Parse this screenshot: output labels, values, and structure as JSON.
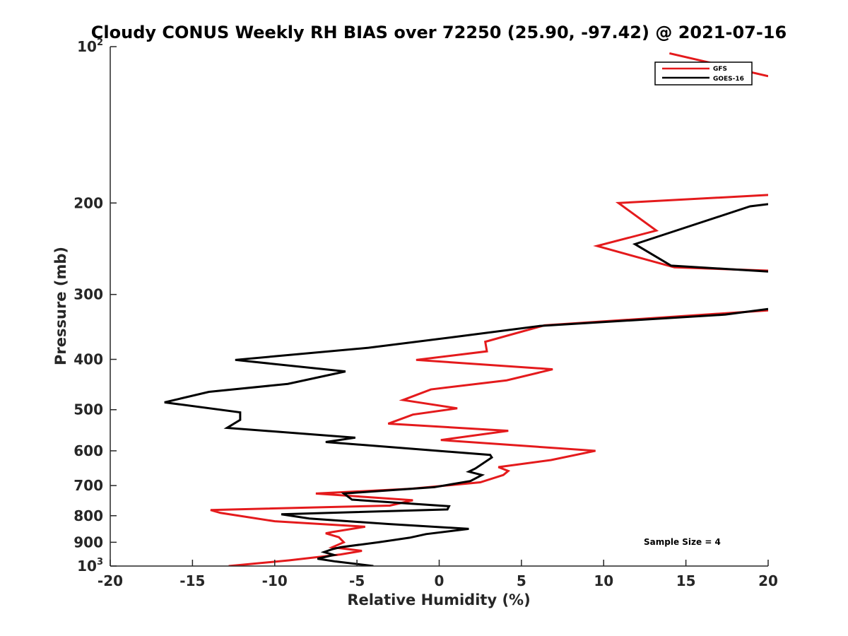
{
  "chart_data": {
    "type": "line",
    "title": "Cloudy CONUS Weekly RH BIAS over 72250 (25.90, -97.42) @ 2021-07-16",
    "xlabel": "Relative Humidity (%)",
    "ylabel": "Pressure (mb)",
    "xlim": [
      -20,
      20
    ],
    "ylim": [
      100,
      1000
    ],
    "y_scale": "log",
    "y_reversed": true,
    "grid": false,
    "legend_position": "top-right",
    "annotation": "Sample Size = 4",
    "x_ticks": [
      -20,
      -15,
      -10,
      -5,
      0,
      5,
      10,
      15,
      20
    ],
    "x_tick_labels": [
      "-20",
      "-15",
      "-10",
      "-5",
      "0",
      "5",
      "10",
      "15",
      "20"
    ],
    "y_ticks": [
      {
        "value": 100,
        "base": "10",
        "exp": "2"
      },
      {
        "value": 200,
        "label": "200"
      },
      {
        "value": 300,
        "label": "300"
      },
      {
        "value": 400,
        "label": "400"
      },
      {
        "value": 500,
        "label": "500"
      },
      {
        "value": 600,
        "label": "600"
      },
      {
        "value": 700,
        "label": "700"
      },
      {
        "value": 800,
        "label": "800"
      },
      {
        "value": 900,
        "label": "900"
      },
      {
        "value": 1000,
        "base": "10",
        "exp": "3"
      }
    ],
    "series": [
      {
        "name": "GFS",
        "color": "#e41a1c",
        "points": [
          [
            -12.8,
            1000
          ],
          [
            -9.1,
            975
          ],
          [
            -6.0,
            950
          ],
          [
            -4.7,
            935
          ],
          [
            -6.5,
            920
          ],
          [
            -5.8,
            900
          ],
          [
            -6.1,
            880
          ],
          [
            -6.9,
            865
          ],
          [
            -6.5,
            860
          ],
          [
            -4.5,
            840
          ],
          [
            -10.0,
            820
          ],
          [
            -13.3,
            790
          ],
          [
            -13.9,
            780
          ],
          [
            -3.0,
            765
          ],
          [
            -1.6,
            747
          ],
          [
            -7.5,
            725
          ],
          [
            -1.7,
            710
          ],
          [
            2.5,
            690
          ],
          [
            3.9,
            668
          ],
          [
            4.2,
            656
          ],
          [
            3.6,
            645
          ],
          [
            6.8,
            625
          ],
          [
            9.5,
            600
          ],
          [
            0.1,
            572
          ],
          [
            4.2,
            549
          ],
          [
            -3.1,
            532
          ],
          [
            -1.6,
            511
          ],
          [
            1.1,
            497
          ],
          [
            -2.2,
            479
          ],
          [
            -0.5,
            457
          ],
          [
            4.1,
            439
          ],
          [
            6.9,
            418
          ],
          [
            -1.4,
            401
          ],
          [
            2.9,
            386
          ],
          [
            2.8,
            370
          ],
          [
            6.4,
            344
          ],
          [
            20,
            322
          ],
          null,
          [
            20,
            270
          ],
          [
            14.3,
            266
          ],
          [
            9.6,
            242
          ],
          [
            13.2,
            226
          ],
          [
            10.9,
            200
          ],
          [
            20,
            193
          ],
          null,
          [
            14.0,
            103
          ],
          [
            20,
            114
          ]
        ]
      },
      {
        "name": "GOES-16",
        "color": "#000000",
        "points": [
          [
            -4.0,
            1000
          ],
          [
            -6.3,
            980
          ],
          [
            -7.4,
            968
          ],
          [
            -6.4,
            952
          ],
          [
            -7.0,
            940
          ],
          [
            -6.5,
            928
          ],
          [
            -6.0,
            920
          ],
          [
            -3.7,
            900
          ],
          [
            -1.8,
            882
          ],
          [
            -0.8,
            868
          ],
          [
            1.8,
            848
          ],
          [
            -3.1,
            830
          ],
          [
            -7.9,
            810
          ],
          [
            -9.6,
            795
          ],
          [
            0.5,
            778
          ],
          [
            0.6,
            767
          ],
          [
            -5.3,
            745
          ],
          [
            -5.8,
            725
          ],
          [
            -0.3,
            705
          ],
          [
            1.9,
            686
          ],
          [
            2.6,
            668
          ],
          [
            1.8,
            658
          ],
          [
            2.2,
            649
          ],
          [
            3.2,
            618
          ],
          [
            3.1,
            611
          ],
          [
            -6.9,
            577
          ],
          [
            -5.1,
            566
          ],
          [
            -12.9,
            542
          ],
          [
            -12.1,
            523
          ],
          [
            -12.1,
            506
          ],
          [
            -16.7,
            484
          ],
          [
            -14.0,
            462
          ],
          [
            -9.2,
            446
          ],
          [
            -5.7,
            422
          ],
          [
            -12.4,
            401
          ],
          [
            -4.3,
            380
          ],
          [
            1.0,
            362
          ],
          [
            6.1,
            345
          ],
          [
            17.4,
            328
          ],
          [
            20,
            320
          ],
          null,
          [
            20,
            271
          ],
          [
            14.1,
            264
          ],
          [
            11.9,
            240
          ],
          [
            18.9,
            203
          ],
          [
            20,
            201
          ]
        ]
      }
    ]
  }
}
